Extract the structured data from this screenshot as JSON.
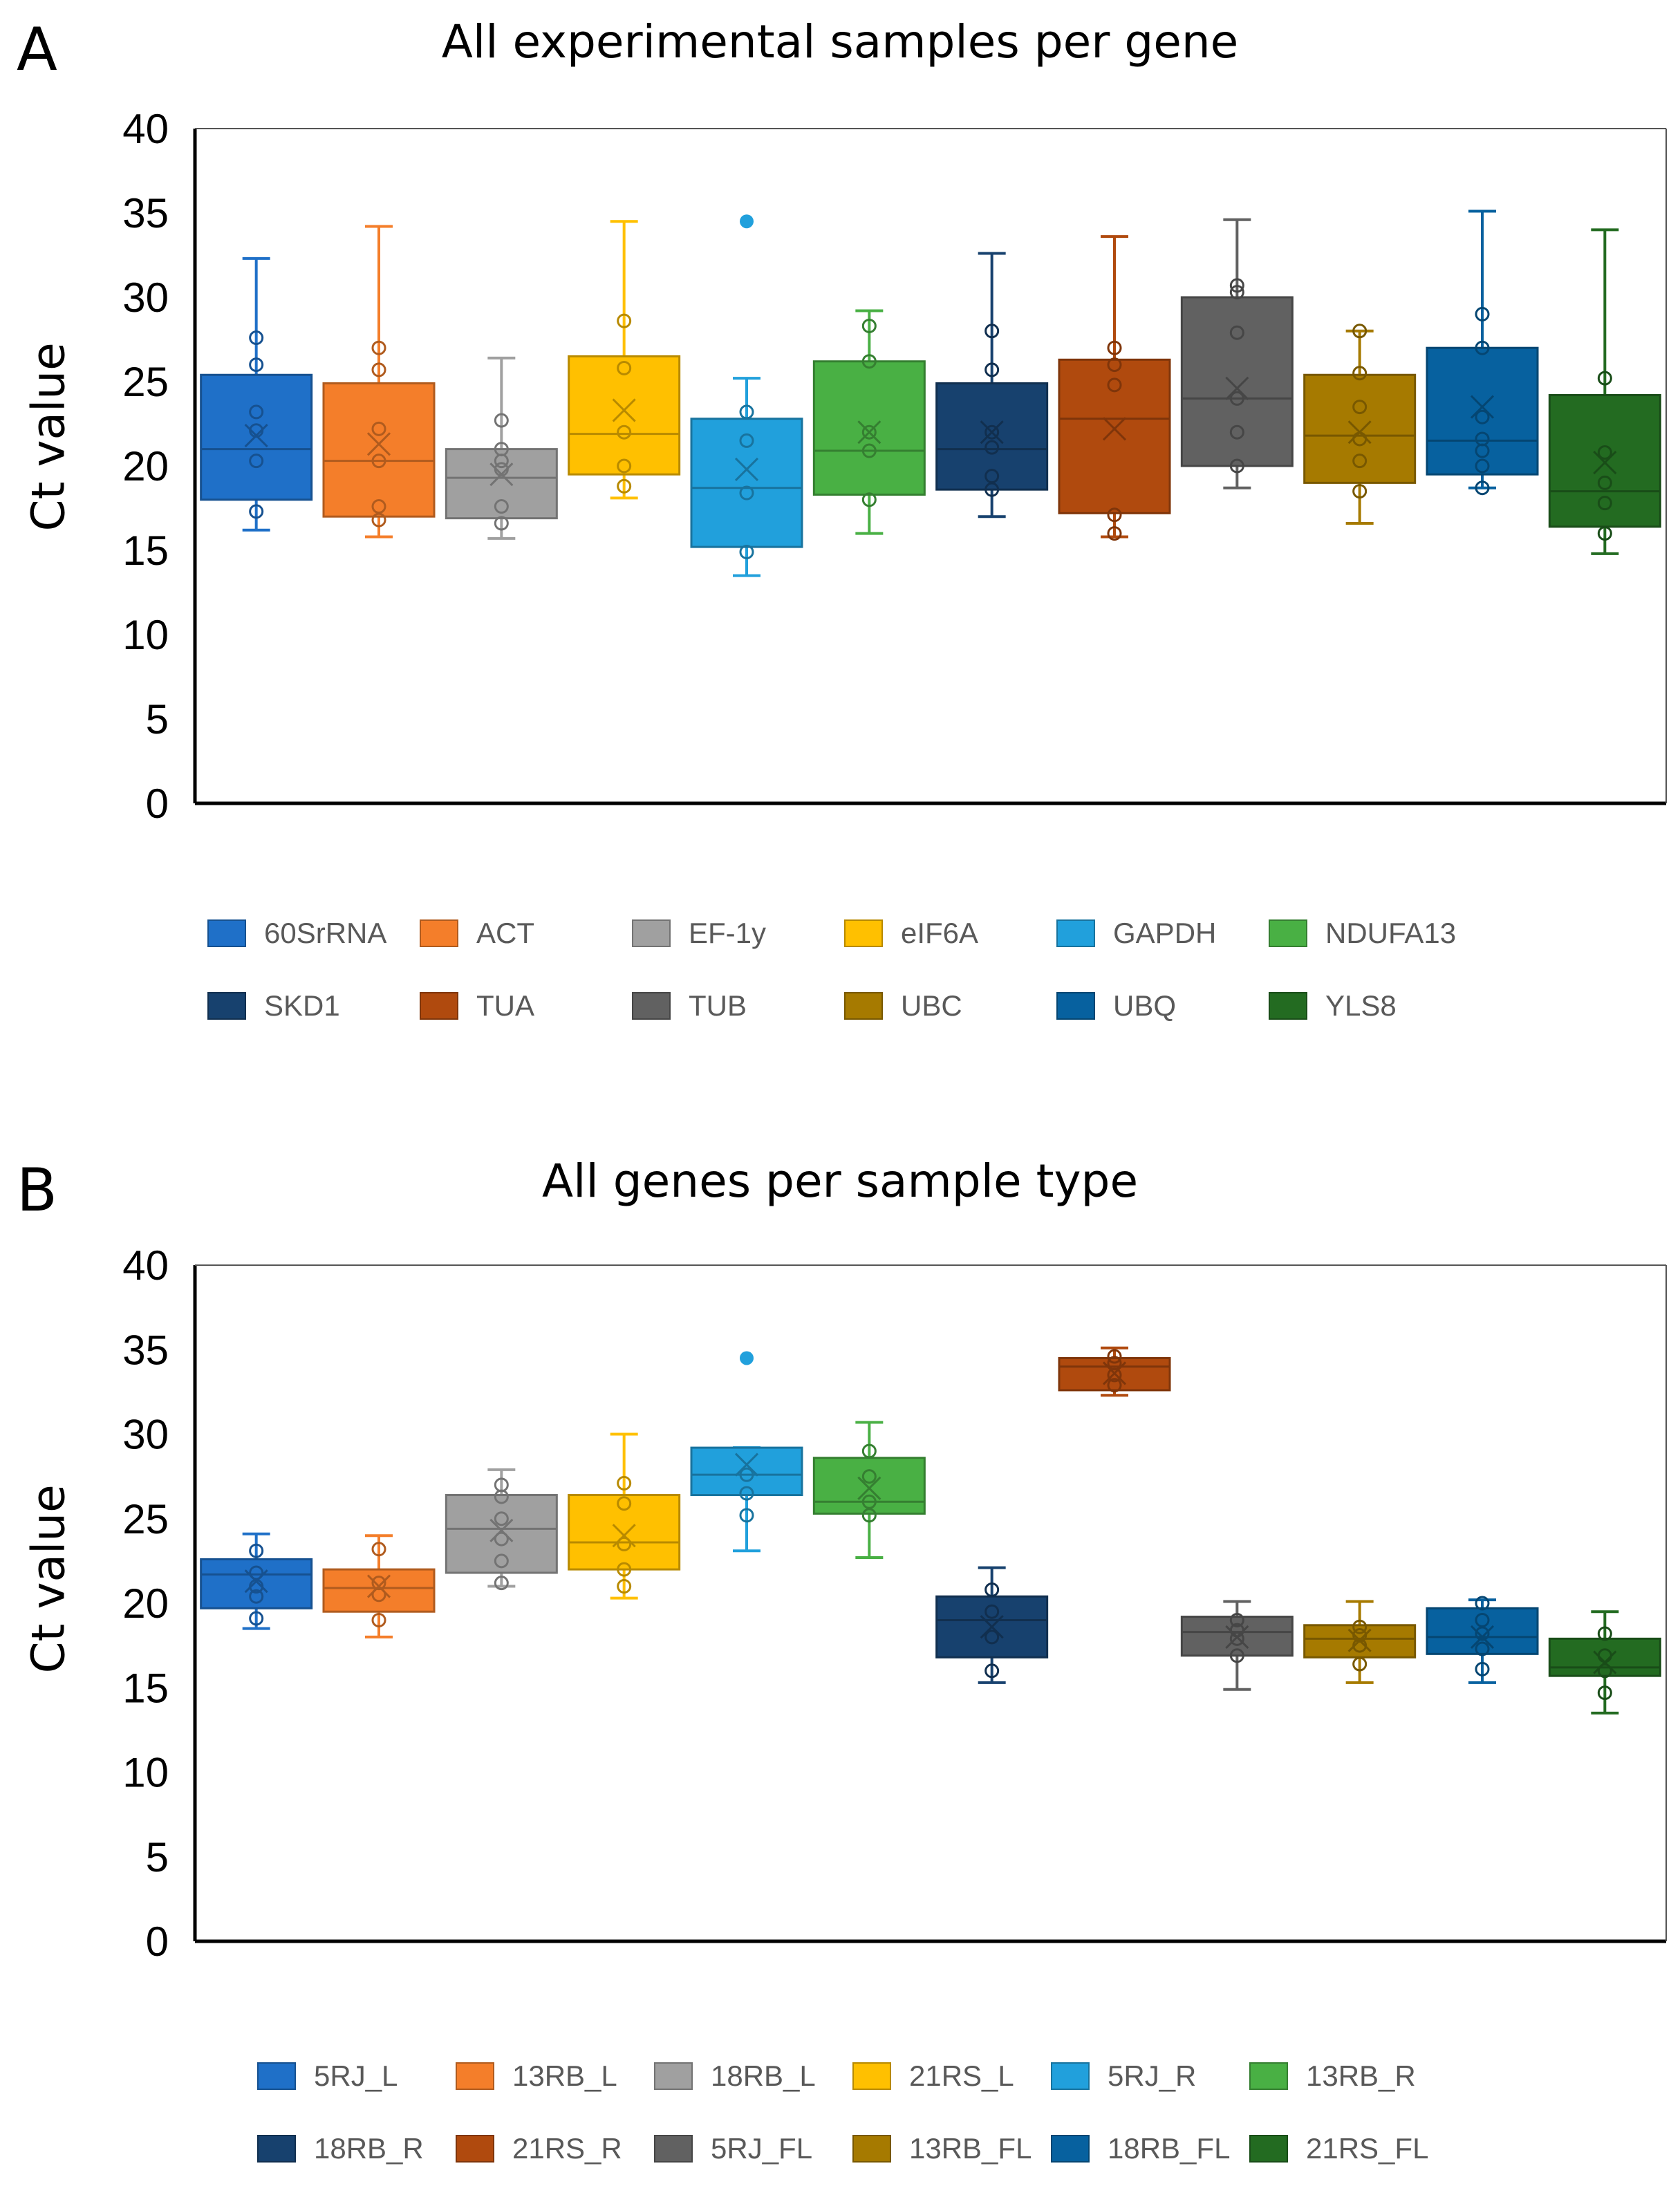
{
  "chart_data": [
    {
      "panel": "A",
      "type": "box",
      "title": "All experimental samples per gene",
      "ylabel": "Ct value",
      "ylim": [
        0,
        40
      ],
      "yticks": [
        0,
        5,
        10,
        15,
        20,
        25,
        30,
        35,
        40
      ],
      "series": [
        {
          "name": "60SrRNA",
          "color": "#1F70C8",
          "min": 16.2,
          "q1": 18.0,
          "median": 21.0,
          "q3": 25.4,
          "max": 32.3,
          "mean": 21.8,
          "points": [
            17.3,
            20.3,
            22.1,
            23.2,
            26.0,
            27.6
          ],
          "outliers": []
        },
        {
          "name": "ACT",
          "color": "#F47E2A",
          "min": 15.8,
          "q1": 17.0,
          "median": 20.3,
          "q3": 24.9,
          "max": 34.2,
          "mean": 21.3,
          "points": [
            16.8,
            17.6,
            20.3,
            22.2,
            25.7,
            27.0
          ],
          "outliers": []
        },
        {
          "name": "EF-1y",
          "color": "#A0A0A0",
          "min": 15.7,
          "q1": 16.9,
          "median": 19.3,
          "q3": 21.0,
          "max": 26.4,
          "mean": 19.5,
          "points": [
            16.6,
            17.6,
            19.8,
            20.3,
            21.0,
            22.7
          ],
          "outliers": []
        },
        {
          "name": "eIF6A",
          "color": "#FFC000",
          "min": 18.1,
          "q1": 19.5,
          "median": 21.9,
          "q3": 26.5,
          "max": 34.5,
          "mean": 23.3,
          "points": [
            18.8,
            20.0,
            22.0,
            25.8,
            28.6
          ],
          "outliers": []
        },
        {
          "name": "GAPDH",
          "color": "#21A0DC",
          "min": 13.5,
          "q1": 15.2,
          "median": 18.7,
          "q3": 22.8,
          "max": 25.2,
          "mean": 19.8,
          "points": [
            14.9,
            18.4,
            21.5,
            23.2
          ],
          "outliers": [
            34.5
          ]
        },
        {
          "name": "NDUFA13",
          "color": "#49B044",
          "min": 16.0,
          "q1": 18.3,
          "median": 20.9,
          "q3": 26.2,
          "max": 29.2,
          "mean": 22.0,
          "points": [
            18.0,
            20.9,
            22.0,
            26.2,
            28.3
          ],
          "outliers": []
        },
        {
          "name": "SKD1",
          "color": "#17416E",
          "min": 17.0,
          "q1": 18.6,
          "median": 21.0,
          "q3": 24.9,
          "max": 32.6,
          "mean": 22.0,
          "points": [
            18.6,
            19.4,
            21.1,
            22.0,
            25.7,
            28.0
          ],
          "outliers": []
        },
        {
          "name": "TUA",
          "color": "#B04A0E",
          "min": 15.8,
          "q1": 17.2,
          "median": 22.8,
          "q3": 26.3,
          "max": 33.6,
          "mean": 22.2,
          "points": [
            16.0,
            17.1,
            24.8,
            26.0,
            27.0
          ],
          "outliers": []
        },
        {
          "name": "TUB",
          "color": "#616161",
          "min": 18.7,
          "q1": 20.0,
          "median": 24.0,
          "q3": 30.0,
          "max": 34.6,
          "mean": 24.6,
          "points": [
            20.0,
            22.0,
            24.0,
            27.9,
            30.3,
            30.7
          ],
          "outliers": []
        },
        {
          "name": "UBC",
          "color": "#A67A00",
          "min": 16.6,
          "q1": 19.0,
          "median": 21.8,
          "q3": 25.4,
          "max": 28.0,
          "mean": 22.0,
          "points": [
            18.5,
            20.3,
            21.6,
            23.5,
            25.5,
            28.0
          ],
          "outliers": []
        },
        {
          "name": "UBQ",
          "color": "#07619F",
          "min": 18.7,
          "q1": 19.5,
          "median": 21.5,
          "q3": 27.0,
          "max": 35.1,
          "mean": 23.5,
          "points": [
            18.7,
            20.0,
            20.9,
            21.6,
            22.9,
            27.0,
            29.0
          ],
          "outliers": []
        },
        {
          "name": "YLS8",
          "color": "#236B21",
          "min": 14.8,
          "q1": 16.4,
          "median": 18.5,
          "q3": 24.2,
          "max": 34.0,
          "mean": 20.2,
          "points": [
            16.0,
            17.8,
            19.0,
            20.8,
            25.2
          ],
          "outliers": []
        }
      ]
    },
    {
      "panel": "B",
      "type": "box",
      "title": "All genes per sample type",
      "ylabel": "Ct value",
      "ylim": [
        0,
        40
      ],
      "yticks": [
        0,
        5,
        10,
        15,
        20,
        25,
        30,
        35,
        40
      ],
      "series": [
        {
          "name": "5RJ_L",
          "color": "#1F70C8",
          "min": 18.5,
          "q1": 19.7,
          "median": 21.7,
          "q3": 22.6,
          "max": 24.1,
          "mean": 21.3,
          "points": [
            19.1,
            20.4,
            21.0,
            21.8,
            23.1
          ],
          "outliers": []
        },
        {
          "name": "13RB_L",
          "color": "#F47E2A",
          "min": 18.0,
          "q1": 19.5,
          "median": 20.9,
          "q3": 22.0,
          "max": 24.0,
          "mean": 21.0,
          "points": [
            19.0,
            20.5,
            21.2,
            23.2
          ],
          "outliers": []
        },
        {
          "name": "18RB_L",
          "color": "#A0A0A0",
          "min": 21.0,
          "q1": 21.8,
          "median": 24.4,
          "q3": 26.4,
          "max": 27.9,
          "mean": 24.3,
          "points": [
            21.2,
            22.5,
            23.8,
            25.0,
            26.3,
            27.0
          ],
          "outliers": []
        },
        {
          "name": "21RS_L",
          "color": "#FFC000",
          "min": 20.3,
          "q1": 22.0,
          "median": 23.6,
          "q3": 26.4,
          "max": 30.0,
          "mean": 24.0,
          "points": [
            21.0,
            22.0,
            23.5,
            25.9,
            27.1
          ],
          "outliers": []
        },
        {
          "name": "5RJ_R",
          "color": "#21A0DC",
          "min": 23.1,
          "q1": 26.4,
          "median": 27.6,
          "q3": 29.2,
          "max": 29.2,
          "mean": 28.2,
          "points": [
            25.2,
            26.5,
            27.6
          ],
          "outliers": [
            34.5
          ]
        },
        {
          "name": "13RB_R",
          "color": "#49B044",
          "min": 22.7,
          "q1": 25.3,
          "median": 26.0,
          "q3": 28.6,
          "max": 30.7,
          "mean": 26.8,
          "points": [
            25.2,
            26.0,
            27.5,
            29.0
          ],
          "outliers": []
        },
        {
          "name": "18RB_R",
          "color": "#17416E",
          "min": 15.3,
          "q1": 16.8,
          "median": 19.0,
          "q3": 20.4,
          "max": 22.1,
          "mean": 18.6,
          "points": [
            16.0,
            18.0,
            19.5,
            20.8
          ],
          "outliers": []
        },
        {
          "name": "21RS_R",
          "color": "#B04A0E",
          "min": 32.3,
          "q1": 32.6,
          "median": 34.0,
          "q3": 34.5,
          "max": 35.1,
          "mean": 33.6,
          "points": [
            32.9,
            33.5,
            34.2,
            34.6
          ],
          "outliers": []
        },
        {
          "name": "5RJ_FL",
          "color": "#616161",
          "min": 14.9,
          "q1": 16.9,
          "median": 18.3,
          "q3": 19.2,
          "max": 20.1,
          "mean": 18.0,
          "points": [
            16.9,
            17.9,
            18.4,
            19.0
          ],
          "outliers": []
        },
        {
          "name": "13RB_FL",
          "color": "#A67A00",
          "min": 15.3,
          "q1": 16.8,
          "median": 17.9,
          "q3": 18.7,
          "max": 20.1,
          "mean": 17.8,
          "points": [
            16.4,
            17.5,
            18.1,
            18.6
          ],
          "outliers": []
        },
        {
          "name": "18RB_FL",
          "color": "#07619F",
          "min": 15.3,
          "q1": 17.0,
          "median": 18.0,
          "q3": 19.7,
          "max": 20.2,
          "mean": 18.0,
          "points": [
            16.1,
            17.3,
            18.2,
            19.0,
            20.0
          ],
          "outliers": []
        },
        {
          "name": "21RS_FL",
          "color": "#236B21",
          "min": 13.5,
          "q1": 15.7,
          "median": 16.2,
          "q3": 17.9,
          "max": 19.5,
          "mean": 16.5,
          "points": [
            14.7,
            16.0,
            16.9,
            18.2
          ],
          "outliers": []
        }
      ]
    }
  ]
}
